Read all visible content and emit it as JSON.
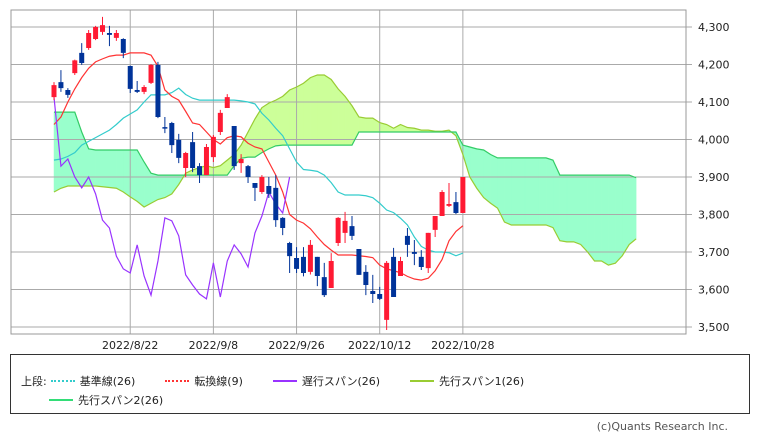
{
  "chart_data": {
    "type": "candlestick",
    "indicator": "ichimoku",
    "y_ticks": [
      "3,500",
      "3,600",
      "3,700",
      "3,800",
      "3,900",
      "4,000",
      "4,100",
      "4,200",
      "4,300"
    ],
    "y_tick_values": [
      3500,
      3600,
      3700,
      3800,
      3900,
      4000,
      4100,
      4200,
      4300
    ],
    "ylim": [
      3481,
      4350
    ],
    "y_axis_position": "right",
    "grid": true,
    "x_ticks": [
      {
        "label": "2022/8/22",
        "index": 11
      },
      {
        "label": "2022/9/8",
        "index": 23
      },
      {
        "label": "2022/9/26",
        "index": 35
      },
      {
        "label": "2022/10/12",
        "index": 47
      },
      {
        "label": "2022/10/28",
        "index": 59
      }
    ],
    "colors": {
      "up": "#ff1a33",
      "down": "#003399",
      "kijun": "#33cccc",
      "tenkan": "#ff3333",
      "chikou": "#9933ff",
      "span1": "#99cc33",
      "span2": "#33cc66",
      "cloud_up": "#ccff99",
      "cloud_down": "#99ffcc"
    },
    "ohlc": [
      [
        4113,
        4153,
        4105,
        4145
      ],
      [
        4153,
        4185,
        4127,
        4137
      ],
      [
        4132,
        4137,
        4111,
        4119
      ],
      [
        4177,
        4213,
        4172,
        4211
      ],
      [
        4231,
        4257,
        4199,
        4204
      ],
      [
        4244,
        4292,
        4239,
        4284
      ],
      [
        4268,
        4303,
        4265,
        4300
      ],
      [
        4287,
        4327,
        4279,
        4305
      ],
      [
        4284,
        4303,
        4249,
        4279
      ],
      [
        4271,
        4292,
        4263,
        4284
      ],
      [
        4268,
        4270,
        4217,
        4231
      ],
      [
        4196,
        4197,
        4124,
        4135
      ],
      [
        4132,
        4156,
        4124,
        4127
      ],
      [
        4127,
        4145,
        4121,
        4140
      ],
      [
        4151,
        4201,
        4148,
        4199
      ],
      [
        4199,
        4207,
        4057,
        4060
      ],
      [
        4033,
        4060,
        4017,
        4031
      ],
      [
        4044,
        4047,
        3964,
        3985
      ],
      [
        3999,
        4015,
        3937,
        3951
      ],
      [
        3924,
        3967,
        3900,
        3964
      ],
      [
        3993,
        4020,
        3913,
        3924
      ],
      [
        3929,
        3937,
        3884,
        3905
      ],
      [
        3905,
        3988,
        3905,
        3980
      ],
      [
        3953,
        4012,
        3940,
        4007
      ],
      [
        4020,
        4079,
        4012,
        4071
      ],
      [
        4084,
        4121,
        4084,
        4113
      ],
      [
        4036,
        4036,
        3919,
        3929
      ],
      [
        3937,
        3961,
        3911,
        3948
      ],
      [
        3929,
        3932,
        3884,
        3900
      ],
      [
        3884,
        3884,
        3836,
        3871
      ],
      [
        3860,
        3905,
        3855,
        3900
      ],
      [
        3876,
        3900,
        3844,
        3855
      ],
      [
        3871,
        3905,
        3767,
        3785
      ],
      [
        3791,
        3793,
        3745,
        3764
      ],
      [
        3724,
        3727,
        3644,
        3689
      ],
      [
        3684,
        3713,
        3644,
        3655
      ],
      [
        3687,
        3713,
        3635,
        3644
      ],
      [
        3647,
        3732,
        3640,
        3719
      ],
      [
        3687,
        3687,
        3609,
        3636
      ],
      [
        3633,
        3671,
        3580,
        3585
      ],
      [
        3604,
        3697,
        3604,
        3676
      ],
      [
        3724,
        3793,
        3716,
        3791
      ],
      [
        3751,
        3807,
        3724,
        3783
      ],
      [
        3769,
        3796,
        3732,
        3743
      ],
      [
        3708,
        3708,
        3639,
        3639
      ],
      [
        3647,
        3665,
        3585,
        3612
      ],
      [
        3596,
        3639,
        3564,
        3588
      ],
      [
        3588,
        3607,
        3572,
        3575
      ],
      [
        3519,
        3676,
        3492,
        3671
      ],
      [
        3687,
        3711,
        3580,
        3580
      ],
      [
        3636,
        3687,
        3636,
        3676
      ],
      [
        3743,
        3764,
        3687,
        3719
      ],
      [
        3700,
        3732,
        3665,
        3695
      ],
      [
        3687,
        3705,
        3652,
        3660
      ],
      [
        3657,
        3751,
        3644,
        3751
      ],
      [
        3759,
        3796,
        3740,
        3796
      ],
      [
        3796,
        3865,
        3796,
        3860
      ],
      [
        3823,
        3884,
        3820,
        3828
      ],
      [
        3833,
        3860,
        3801,
        3804
      ],
      [
        3804,
        3900,
        3804,
        3900
      ]
    ],
    "series": [
      {
        "name": "基準線(26)",
        "key": "kijun",
        "values": [
          3945,
          3948,
          3955,
          3965,
          3985,
          3995,
          4005,
          4015,
          4025,
          4040,
          4057,
          4068,
          4079,
          4100,
          4119,
          4119,
          4119,
          4125,
          4137,
          4120,
          4110,
          4105,
          4105,
          4105,
          4105,
          4105,
          4105,
          4103,
          4100,
          4095,
          4070,
          4052,
          4030,
          4010,
          3975,
          3940,
          3920,
          3918,
          3915,
          3905,
          3885,
          3860,
          3852,
          3852,
          3852,
          3850,
          3845,
          3830,
          3812,
          3805,
          3790,
          3772,
          3740,
          3715,
          3705,
          3700,
          3700,
          3698,
          3690,
          3697
        ]
      },
      {
        "name": "転換線(9)",
        "key": "tenkan",
        "values": [
          4040,
          4060,
          4100,
          4135,
          4165,
          4190,
          4207,
          4215,
          4222,
          4225,
          4225,
          4231,
          4231,
          4231,
          4225,
          4195,
          4132,
          4115,
          4105,
          4075,
          4044,
          4040,
          4020,
          4000,
          3988,
          4005,
          4010,
          4007,
          3990,
          3980,
          3975,
          3940,
          3905,
          3860,
          3800,
          3785,
          3777,
          3762,
          3740,
          3720,
          3705,
          3692,
          3692,
          3692,
          3690,
          3688,
          3685,
          3665,
          3655,
          3650,
          3645,
          3635,
          3628,
          3625,
          3630,
          3650,
          3680,
          3730,
          3755,
          3770
        ]
      },
      {
        "name": "遅行スパン(26)",
        "key": "chikou",
        "shift": -25
      },
      {
        "name": "先行スパン1(26)",
        "key": "span1",
        "values": [
          3860,
          3870,
          3876,
          3876,
          3876,
          3876,
          3876,
          3874,
          3872,
          3870,
          3860,
          3847,
          3835,
          3820,
          3830,
          3840,
          3845,
          3855,
          3880,
          3910,
          3919,
          3925,
          3930,
          3925,
          3930,
          3945,
          3960,
          3985,
          4020,
          4055,
          4085,
          4097,
          4105,
          4115,
          4132,
          4140,
          4150,
          4165,
          4172,
          4172,
          4160,
          4135,
          4115,
          4090,
          4060,
          4057,
          4057,
          4045,
          4040,
          4030,
          4040,
          4032,
          4030,
          4025,
          4025,
          4022,
          4022,
          4025,
          4010,
          3960,
          3900,
          3870,
          3845,
          3830,
          3817,
          3780,
          3772,
          3772,
          3772,
          3772,
          3772,
          3772,
          3765,
          3730,
          3727,
          3727,
          3720,
          3700,
          3676,
          3676,
          3665,
          3670,
          3690,
          3720,
          3735
        ]
      },
      {
        "name": "先行スパン2(26)",
        "key": "span2",
        "values": [
          4073,
          4073,
          4073,
          4073,
          4020,
          3975,
          3972,
          3972,
          3972,
          3972,
          3972,
          3972,
          3972,
          3940,
          3910,
          3905,
          3905,
          3905,
          3905,
          3905,
          3905,
          3905,
          3905,
          3905,
          3905,
          3905,
          3930,
          3950,
          3953,
          3953,
          3965,
          3975,
          3983,
          3985,
          3985,
          3985,
          3985,
          3985,
          3985,
          3985,
          3985,
          3985,
          3985,
          3985,
          4020,
          4020,
          4020,
          4020,
          4020,
          4020,
          4020,
          4020,
          4020,
          4020,
          4020,
          4020,
          4020,
          4020,
          4020,
          3985,
          3980,
          3975,
          3972,
          3960,
          3951,
          3951,
          3951,
          3951,
          3951,
          3951,
          3951,
          3951,
          3945,
          3905,
          3905,
          3905,
          3905,
          3905,
          3905,
          3905,
          3905,
          3905,
          3905,
          3905,
          3898
        ]
      }
    ]
  },
  "legend": {
    "section_label": "上段:",
    "items": [
      "基準線(26)",
      "転換線(9)",
      "遅行スパン(26)",
      "先行スパン1(26)",
      "先行スパン2(26)"
    ]
  },
  "copyright": "(c)Quants Research Inc."
}
